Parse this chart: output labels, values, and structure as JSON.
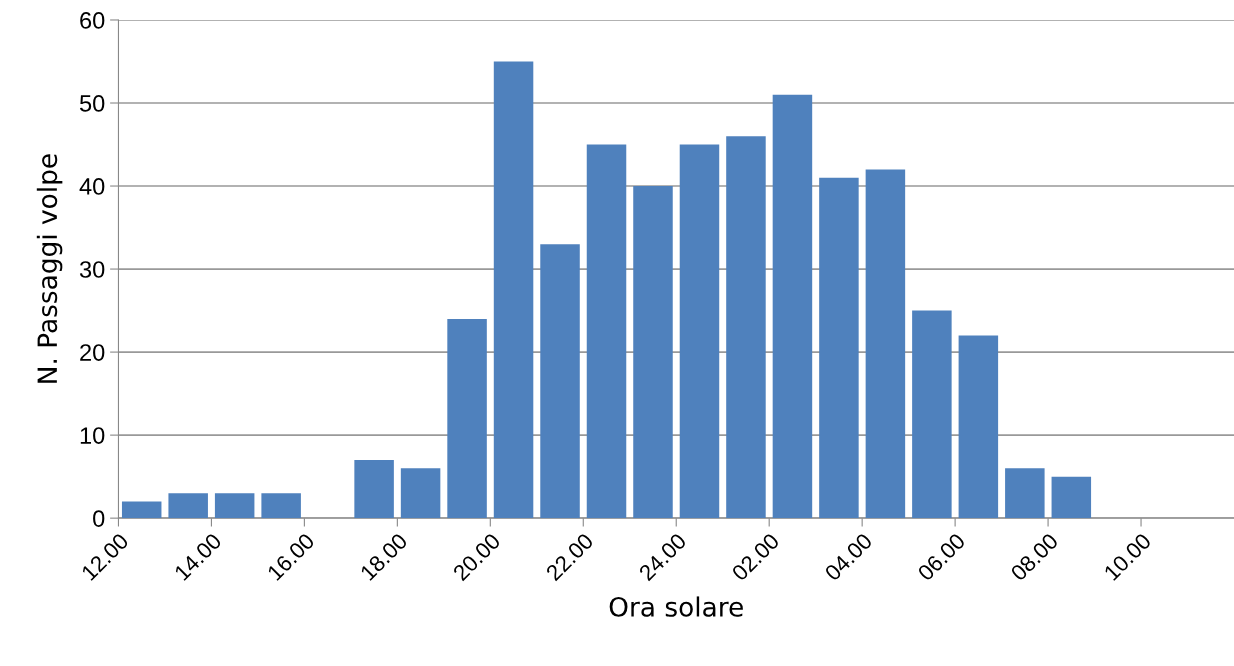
{
  "chart_data": {
    "type": "bar",
    "xlabel": "Ora solare",
    "ylabel": "N. Passaggi volpe",
    "categories": [
      "12.00",
      null,
      "14.00",
      null,
      "16.00",
      null,
      "18.00",
      null,
      "20.00",
      null,
      "22.00",
      null,
      "24.00",
      null,
      "02.00",
      null,
      "04.00",
      null,
      "06.00",
      null,
      "08.00",
      null,
      "10.00",
      null
    ],
    "values": [
      2,
      3,
      3,
      3,
      0,
      7,
      6,
      24,
      55,
      33,
      45,
      40,
      45,
      46,
      51,
      41,
      42,
      25,
      22,
      6,
      5,
      0,
      0,
      0
    ],
    "color": "#4f81bd",
    "ylim": [
      0,
      60
    ],
    "yticks": [
      0,
      10,
      20,
      30,
      40,
      50,
      60
    ],
    "grid": "y",
    "legend": false
  }
}
